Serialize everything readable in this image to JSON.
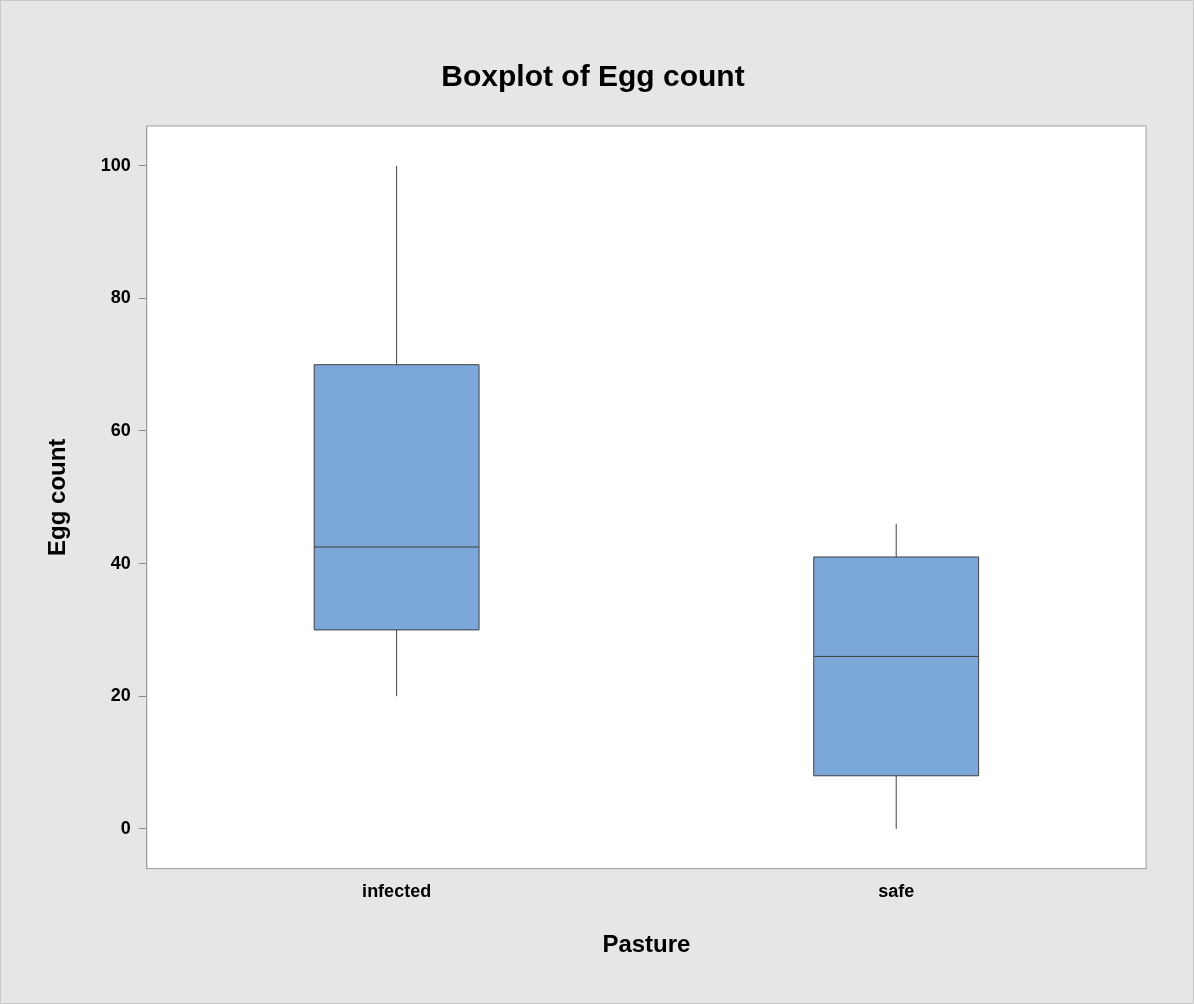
{
  "chart_data": {
    "type": "box",
    "title": "Boxplot of Egg count",
    "xlabel": "Pasture",
    "ylabel": "Egg count",
    "categories": [
      "infected",
      "safe"
    ],
    "color": "#7ba7d9",
    "boxes": [
      {
        "low": 20,
        "q1": 30,
        "median": 42.5,
        "q3": 70,
        "high": 100
      },
      {
        "low": 0,
        "q1": 8,
        "median": 26,
        "q3": 41,
        "high": 46
      }
    ],
    "ylim": [
      -6,
      106
    ],
    "yticks": [
      0,
      20,
      40,
      60,
      80,
      100
    ],
    "grid": false,
    "legend": false
  }
}
